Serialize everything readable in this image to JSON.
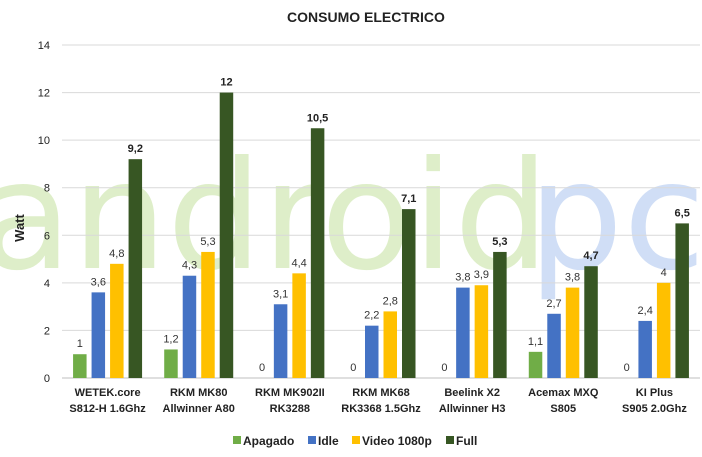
{
  "chart_data": {
    "type": "bar",
    "title": "CONSUMO ELECTRICO",
    "xlabel": "",
    "ylabel": "Watt",
    "ylim": [
      0,
      14
    ],
    "yticks": [
      0,
      2,
      4,
      6,
      8,
      10,
      12,
      14
    ],
    "grid": true,
    "legend_position": "bottom",
    "categories": [
      [
        "WETEK.core",
        "S812-H 1.6Ghz"
      ],
      [
        "RKM MK80",
        "Allwinner A80"
      ],
      [
        "RKM MK902II",
        "RK3288"
      ],
      [
        "RKM MK68",
        "RK3368 1.5Ghz"
      ],
      [
        "Beelink X2",
        "Allwinner H3"
      ],
      [
        "Acemax MXQ",
        "S805"
      ],
      [
        "KI Plus",
        "S905 2.0Ghz"
      ]
    ],
    "series": [
      {
        "name": "Apagado",
        "color": "#70ad47",
        "values": [
          1,
          1.2,
          0,
          0,
          0,
          1.1,
          0
        ],
        "labels": [
          "1",
          "1,2",
          "0",
          "0",
          "0",
          "1,1",
          "0"
        ]
      },
      {
        "name": "Idle",
        "color": "#4472c4",
        "values": [
          3.6,
          4.3,
          3.1,
          2.2,
          3.8,
          2.7,
          2.4
        ],
        "labels": [
          "3,6",
          "4,3",
          "3,1",
          "2,2",
          "3,8",
          "2,7",
          "2,4"
        ]
      },
      {
        "name": "Video 1080p",
        "color": "#ffc000",
        "values": [
          4.8,
          5.3,
          4.4,
          2.8,
          3.9,
          3.8,
          4
        ],
        "labels": [
          "4,8",
          "5,3",
          "4,4",
          "2,8",
          "3,9",
          "3,8",
          "4"
        ]
      },
      {
        "name": "Full",
        "color": "#375623",
        "values": [
          9.2,
          12,
          10.5,
          7.1,
          5.3,
          4.7,
          6.5
        ],
        "labels": [
          "9,2",
          "12",
          "10,5",
          "7,1",
          "5,3",
          "4,7",
          "6,5"
        ]
      }
    ]
  },
  "watermark": {
    "part1": "android",
    "part2": "pc"
  }
}
